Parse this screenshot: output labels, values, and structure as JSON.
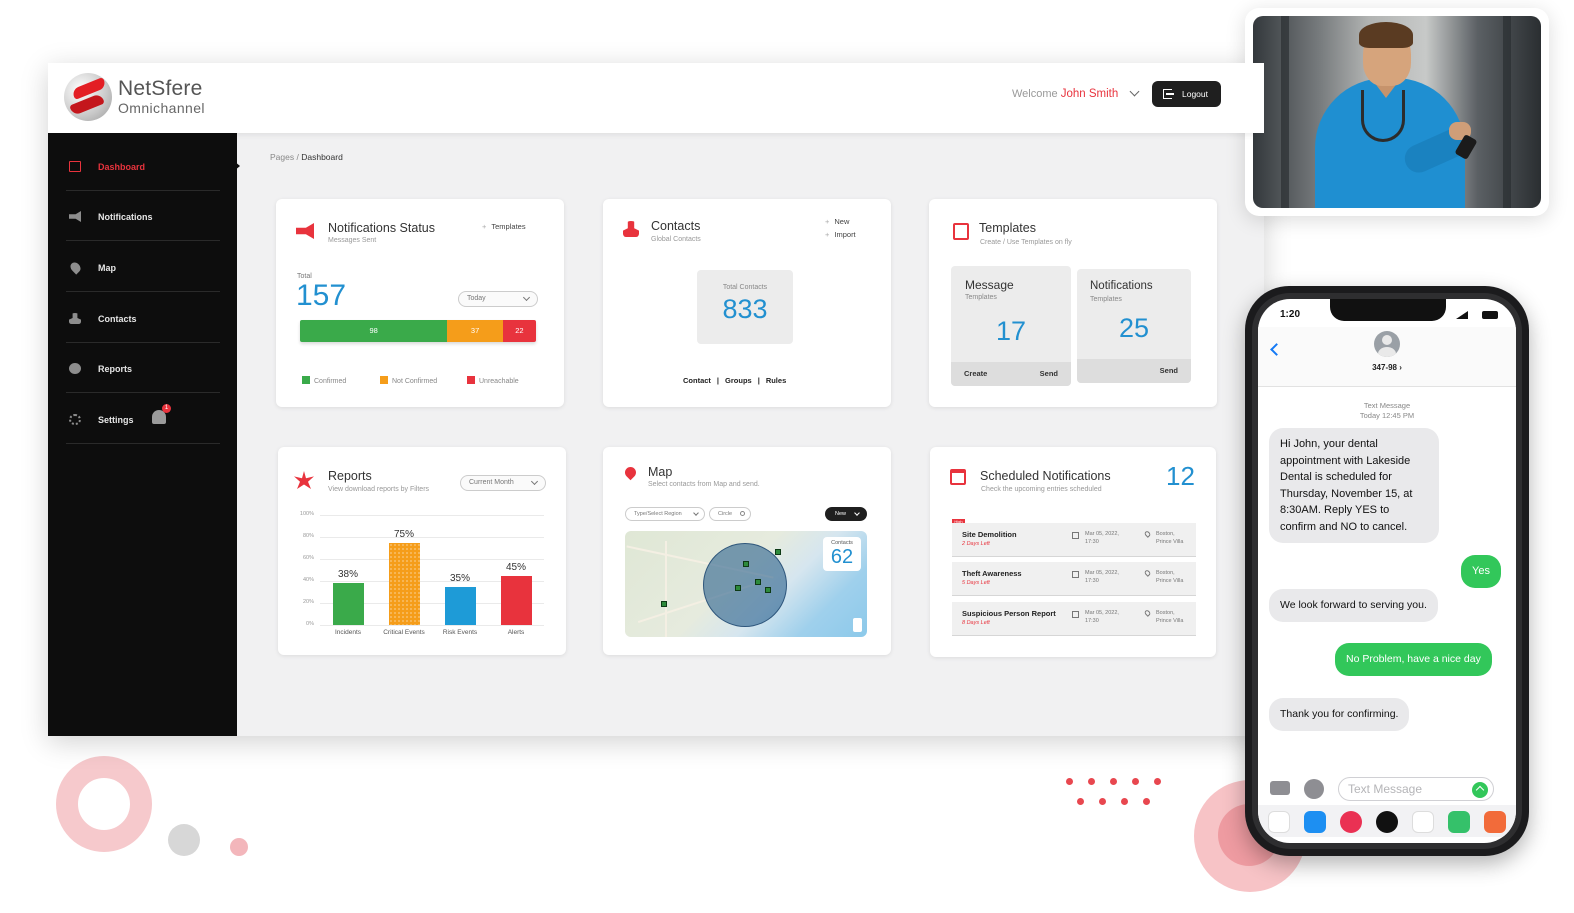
{
  "header": {
    "brand_name": "NetSfere",
    "brand_sub": "Omnichannel",
    "welcome": "Welcome",
    "user_name": "John Smith",
    "logout_label": "Logout"
  },
  "sidebar": {
    "items": [
      {
        "label": "Dashboard",
        "icon": "dashboard-icon",
        "active": true
      },
      {
        "label": "Notifications",
        "icon": "megaphone-icon"
      },
      {
        "label": "Map",
        "icon": "map-pin-icon"
      },
      {
        "label": "Contacts",
        "icon": "contacts-icon"
      },
      {
        "label": "Reports",
        "icon": "reports-icon"
      },
      {
        "label": "Settings",
        "icon": "gear-icon",
        "badge": "1"
      }
    ]
  },
  "breadcrumb": {
    "root": "Pages",
    "sep": "/",
    "current": "Dashboard"
  },
  "notif_status": {
    "title": "Notifications Status",
    "subtitle": "Messages Sent",
    "templates_link": "Templates",
    "total_label": "Total",
    "total": "157",
    "period": "Today",
    "segments": [
      {
        "value": "98",
        "color": "#3aaa4a"
      },
      {
        "value": "37",
        "color": "#f59d1a"
      },
      {
        "value": "22",
        "color": "#e8333d"
      }
    ],
    "legend": [
      {
        "label": "Confirmed",
        "color": "#3aaa4a"
      },
      {
        "label": "Not Confirmed",
        "color": "#f59d1a"
      },
      {
        "label": "Unreachable",
        "color": "#e8333d"
      }
    ]
  },
  "contacts": {
    "title": "Contacts",
    "subtitle": "Global Contacts",
    "new_label": "New",
    "import_label": "Import",
    "total_label": "Total Contacts",
    "total": "833",
    "links": [
      "Contact",
      "Groups",
      "Rules"
    ],
    "link_sep": "|"
  },
  "templates": {
    "title": "Templates",
    "subtitle": "Create / Use Templates on fly",
    "message_title": "Message",
    "message_sub": "Templates",
    "message_count": "17",
    "message_actions": [
      "Create",
      "Send"
    ],
    "notif_title": "Notifications",
    "notif_sub": "Templates",
    "notif_count": "25",
    "notif_action": "Send"
  },
  "reports": {
    "title": "Reports",
    "subtitle": "View download reports by Filters",
    "period": "Current Month"
  },
  "chart_data": {
    "type": "bar",
    "categories": [
      "Incidents",
      "Critical Events",
      "Risk Events",
      "Alerts"
    ],
    "values": [
      38,
      75,
      35,
      45
    ],
    "data_labels": [
      "38%",
      "75%",
      "35%",
      "45%"
    ],
    "colors": [
      "#3aaa4a",
      "#f59d1a",
      "#1e9bd7",
      "#e8333d"
    ],
    "yticks": [
      "100%",
      "80%",
      "60%",
      "40%",
      "20%",
      "0%"
    ],
    "ylim": [
      0,
      100
    ],
    "title": "",
    "xlabel": "",
    "ylabel": "",
    "grid": true
  },
  "map": {
    "title": "Map",
    "subtitle": "Select contacts from Map and send.",
    "region_placeholder": "Type/Select Region",
    "shape_select": "Circle",
    "new_btn": "New",
    "contacts_label": "Contacts",
    "contacts_count": "62"
  },
  "scheduled": {
    "title": "Scheduled Notifications",
    "subtitle": "Check the upcoming entries scheduled",
    "count": "12",
    "tag": "High",
    "rows": [
      {
        "title": "Site Demolition",
        "left": "2 Days Left",
        "date": "Mar 05, 2022,",
        "time": "17:30",
        "place": "Boston,",
        "area": "Prince Villa"
      },
      {
        "title": "Theft Awareness",
        "left": "5 Days Left",
        "date": "Mar 05, 2022,",
        "time": "17:30",
        "place": "Boston,",
        "area": "Prince Villa"
      },
      {
        "title": "Suspicious Person Report",
        "left": "8 Days Left",
        "date": "Mar 05, 2022,",
        "time": "17:30",
        "place": "Boston,",
        "area": "Prince Villa"
      }
    ]
  },
  "phone": {
    "time": "1:20",
    "contact": "347-98 ›",
    "thread_label": "Text Message",
    "thread_time": "Today 12:45 PM",
    "messages": [
      {
        "dir": "in",
        "text": "Hi John, your dental appointment with Lakeside Dental is scheduled for Thursday, November 15, at 8:30AM. Reply YES to confirm and NO to cancel."
      },
      {
        "dir": "out",
        "text": "Yes"
      },
      {
        "dir": "in",
        "text": "We look forward to serving you."
      },
      {
        "dir": "out",
        "text": "No Problem, have a nice day"
      },
      {
        "dir": "in",
        "text": "Thank you for confirming."
      }
    ],
    "input_placeholder": "Text Message"
  }
}
